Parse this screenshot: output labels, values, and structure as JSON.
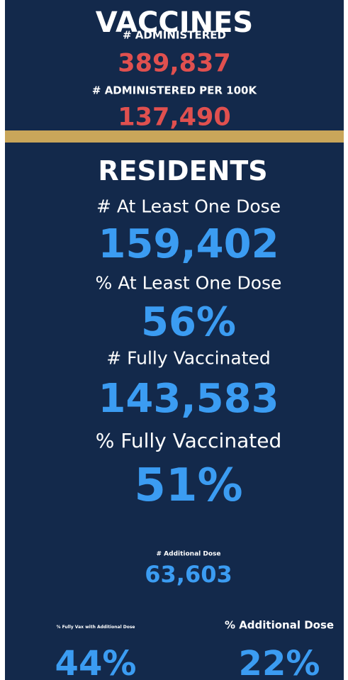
{
  "vaccines": {
    "title": "VACCINES",
    "administered_label": "# ADMINISTERED",
    "administered_value": "389,837",
    "per100k_label": "# ADMINISTERED PER 100K",
    "per100k_value": "137,490"
  },
  "residents": {
    "title": "RESIDENTS",
    "stats": [
      {
        "label": "# At Least One Dose",
        "value": "159,402"
      },
      {
        "label": "% At Least One Dose",
        "value": "56%"
      },
      {
        "label": "# Fully Vaccinated",
        "value": "143,583"
      },
      {
        "label": "% Fully Vaccinated",
        "value": "51%"
      }
    ],
    "additional": {
      "label": "# Additional Dose",
      "value": "63,603"
    },
    "bottom": [
      {
        "label": "% Fully Vax with Additional Dose",
        "value": "44%"
      },
      {
        "label": "% Additional Dose",
        "value": "22%"
      }
    ]
  }
}
